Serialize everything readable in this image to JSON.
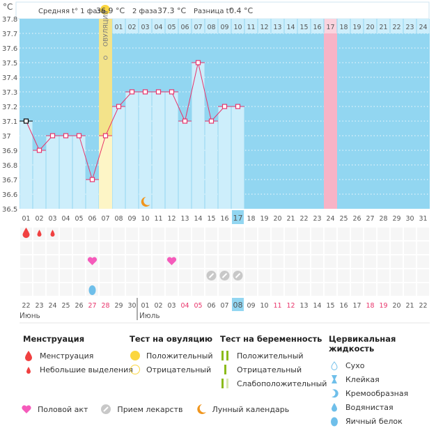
{
  "header": {
    "phase1_label": "Средняя t° 1 фаза",
    "phase1_value": "36.9 °C",
    "phase2_label": "2 фаза",
    "phase2_value": "37.3 °C",
    "diff_label": "Разница t°",
    "diff_value": "0.4 °C",
    "unit": "°C"
  },
  "chart_data": {
    "type": "line",
    "ylabel": "°C",
    "ylim": [
      36.5,
      37.8
    ],
    "y_ticks": [
      "37.8",
      "37.7",
      "37.6",
      "37.5",
      "37.4",
      "37.3",
      "37.2",
      "37.1",
      "37",
      "36.9",
      "36.8",
      "36.7",
      "36.6",
      "36.5"
    ],
    "x_days": [
      "01",
      "02",
      "03",
      "04",
      "05",
      "06",
      "07",
      "08",
      "09",
      "10",
      "11",
      "12",
      "13",
      "14",
      "15",
      "16",
      "17",
      "18",
      "19",
      "20",
      "21",
      "22",
      "23",
      "24",
      "25",
      "26",
      "27",
      "28",
      "29",
      "30",
      "31"
    ],
    "current_day": "17",
    "temperatures": [
      37.1,
      36.9,
      37.0,
      37.0,
      37.0,
      36.7,
      37.0,
      37.2,
      37.3,
      37.3,
      37.3,
      37.3,
      37.1,
      37.5,
      37.1,
      37.2,
      37.2
    ],
    "ovulation_day": 7,
    "ovulation_label": "ОВУЛЯЦИЯ",
    "phase2_days": [
      "01",
      "02",
      "03",
      "04",
      "05",
      "06",
      "07",
      "08",
      "09",
      "10",
      "11",
      "12",
      "13",
      "14",
      "15",
      "16",
      "17",
      "18",
      "19",
      "20",
      "21",
      "22",
      "23",
      "24"
    ],
    "phase2_highlight": "17",
    "moon_day": 10,
    "colors": {
      "bg": "#92d6f1",
      "bar": "#cdeefb",
      "line": "#e8336a",
      "ovulation": "#f3e38a",
      "highlight": "#f7b3c6"
    }
  },
  "markers": {
    "menstruation": [
      1
    ],
    "spotting": [
      2,
      3
    ],
    "intercourse": [
      6,
      12
    ],
    "medication": [
      15,
      16,
      17
    ],
    "egg_white": [
      6
    ]
  },
  "calendar": {
    "dates": [
      "22",
      "23",
      "24",
      "25",
      "26",
      "27",
      "28",
      "29",
      "30",
      "01",
      "02",
      "03",
      "04",
      "05",
      "06",
      "07",
      "08",
      "09",
      "10",
      "11",
      "12",
      "13",
      "14",
      "15",
      "16",
      "17",
      "18",
      "19",
      "20",
      "21",
      "22"
    ],
    "weekend_indices": [
      5,
      6,
      12,
      13,
      19,
      20,
      26,
      27
    ],
    "today_index": 16,
    "month1": "Июнь",
    "month2": "Июль"
  },
  "legend": {
    "menstruation": {
      "title": "Менструация",
      "items": [
        "Менструация",
        "Небольшие выделения"
      ]
    },
    "ovulation_test": {
      "title": "Тест на овуляцию",
      "items": [
        "Положительный",
        "Отрицательный"
      ]
    },
    "pregnancy_test": {
      "title": "Тест на беременность",
      "items": [
        "Положительный",
        "Отрицательный",
        "Слабоположительный"
      ]
    },
    "cervical_fluid": {
      "title": "Цервикальная жидкость",
      "items": [
        "Сухо",
        "Клейкая",
        "Кремообразная",
        "Водянистая",
        "Яичный белок"
      ]
    },
    "other": [
      "Половой акт",
      "Прием лекарств",
      "Лунный календарь"
    ]
  }
}
